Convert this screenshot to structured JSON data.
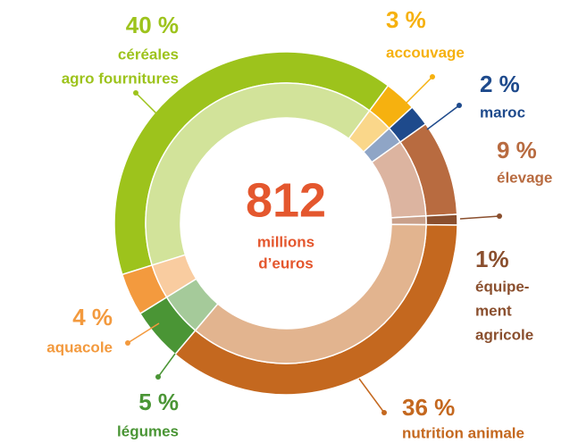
{
  "chart_data": {
    "type": "donut",
    "total": 812,
    "total_label": [
      "millions",
      "d’euros"
    ],
    "categories": [
      [
        "céréales",
        "agro fournitures"
      ],
      [
        "accouvage"
      ],
      [
        "maroc"
      ],
      [
        "élevage"
      ],
      [
        "équipe-",
        "ment",
        "agricole"
      ],
      [
        "nutrition animale"
      ],
      [
        "légumes"
      ],
      [
        "aquacole"
      ]
    ],
    "values": [
      40,
      3,
      2,
      9,
      1,
      36,
      5,
      4
    ],
    "value_labels": [
      "40 %",
      "3 %",
      "2 %",
      "9 %",
      "1%",
      "36 %",
      "5 %",
      "4 %"
    ],
    "colors": [
      "#9dc31c",
      "#f6b10f",
      "#1e4a8c",
      "#b86b40",
      "#8a4f2e",
      "#c4681f",
      "#4a9535",
      "#f39a3e"
    ],
    "inner_colors": [
      "#d2e39a",
      "#fad78a",
      "#8fa5c6",
      "#dcb4a0",
      "#c9a08a",
      "#e2b48f",
      "#a5ca9a",
      "#f9cca0"
    ],
    "center_color": "#e4572e"
  }
}
